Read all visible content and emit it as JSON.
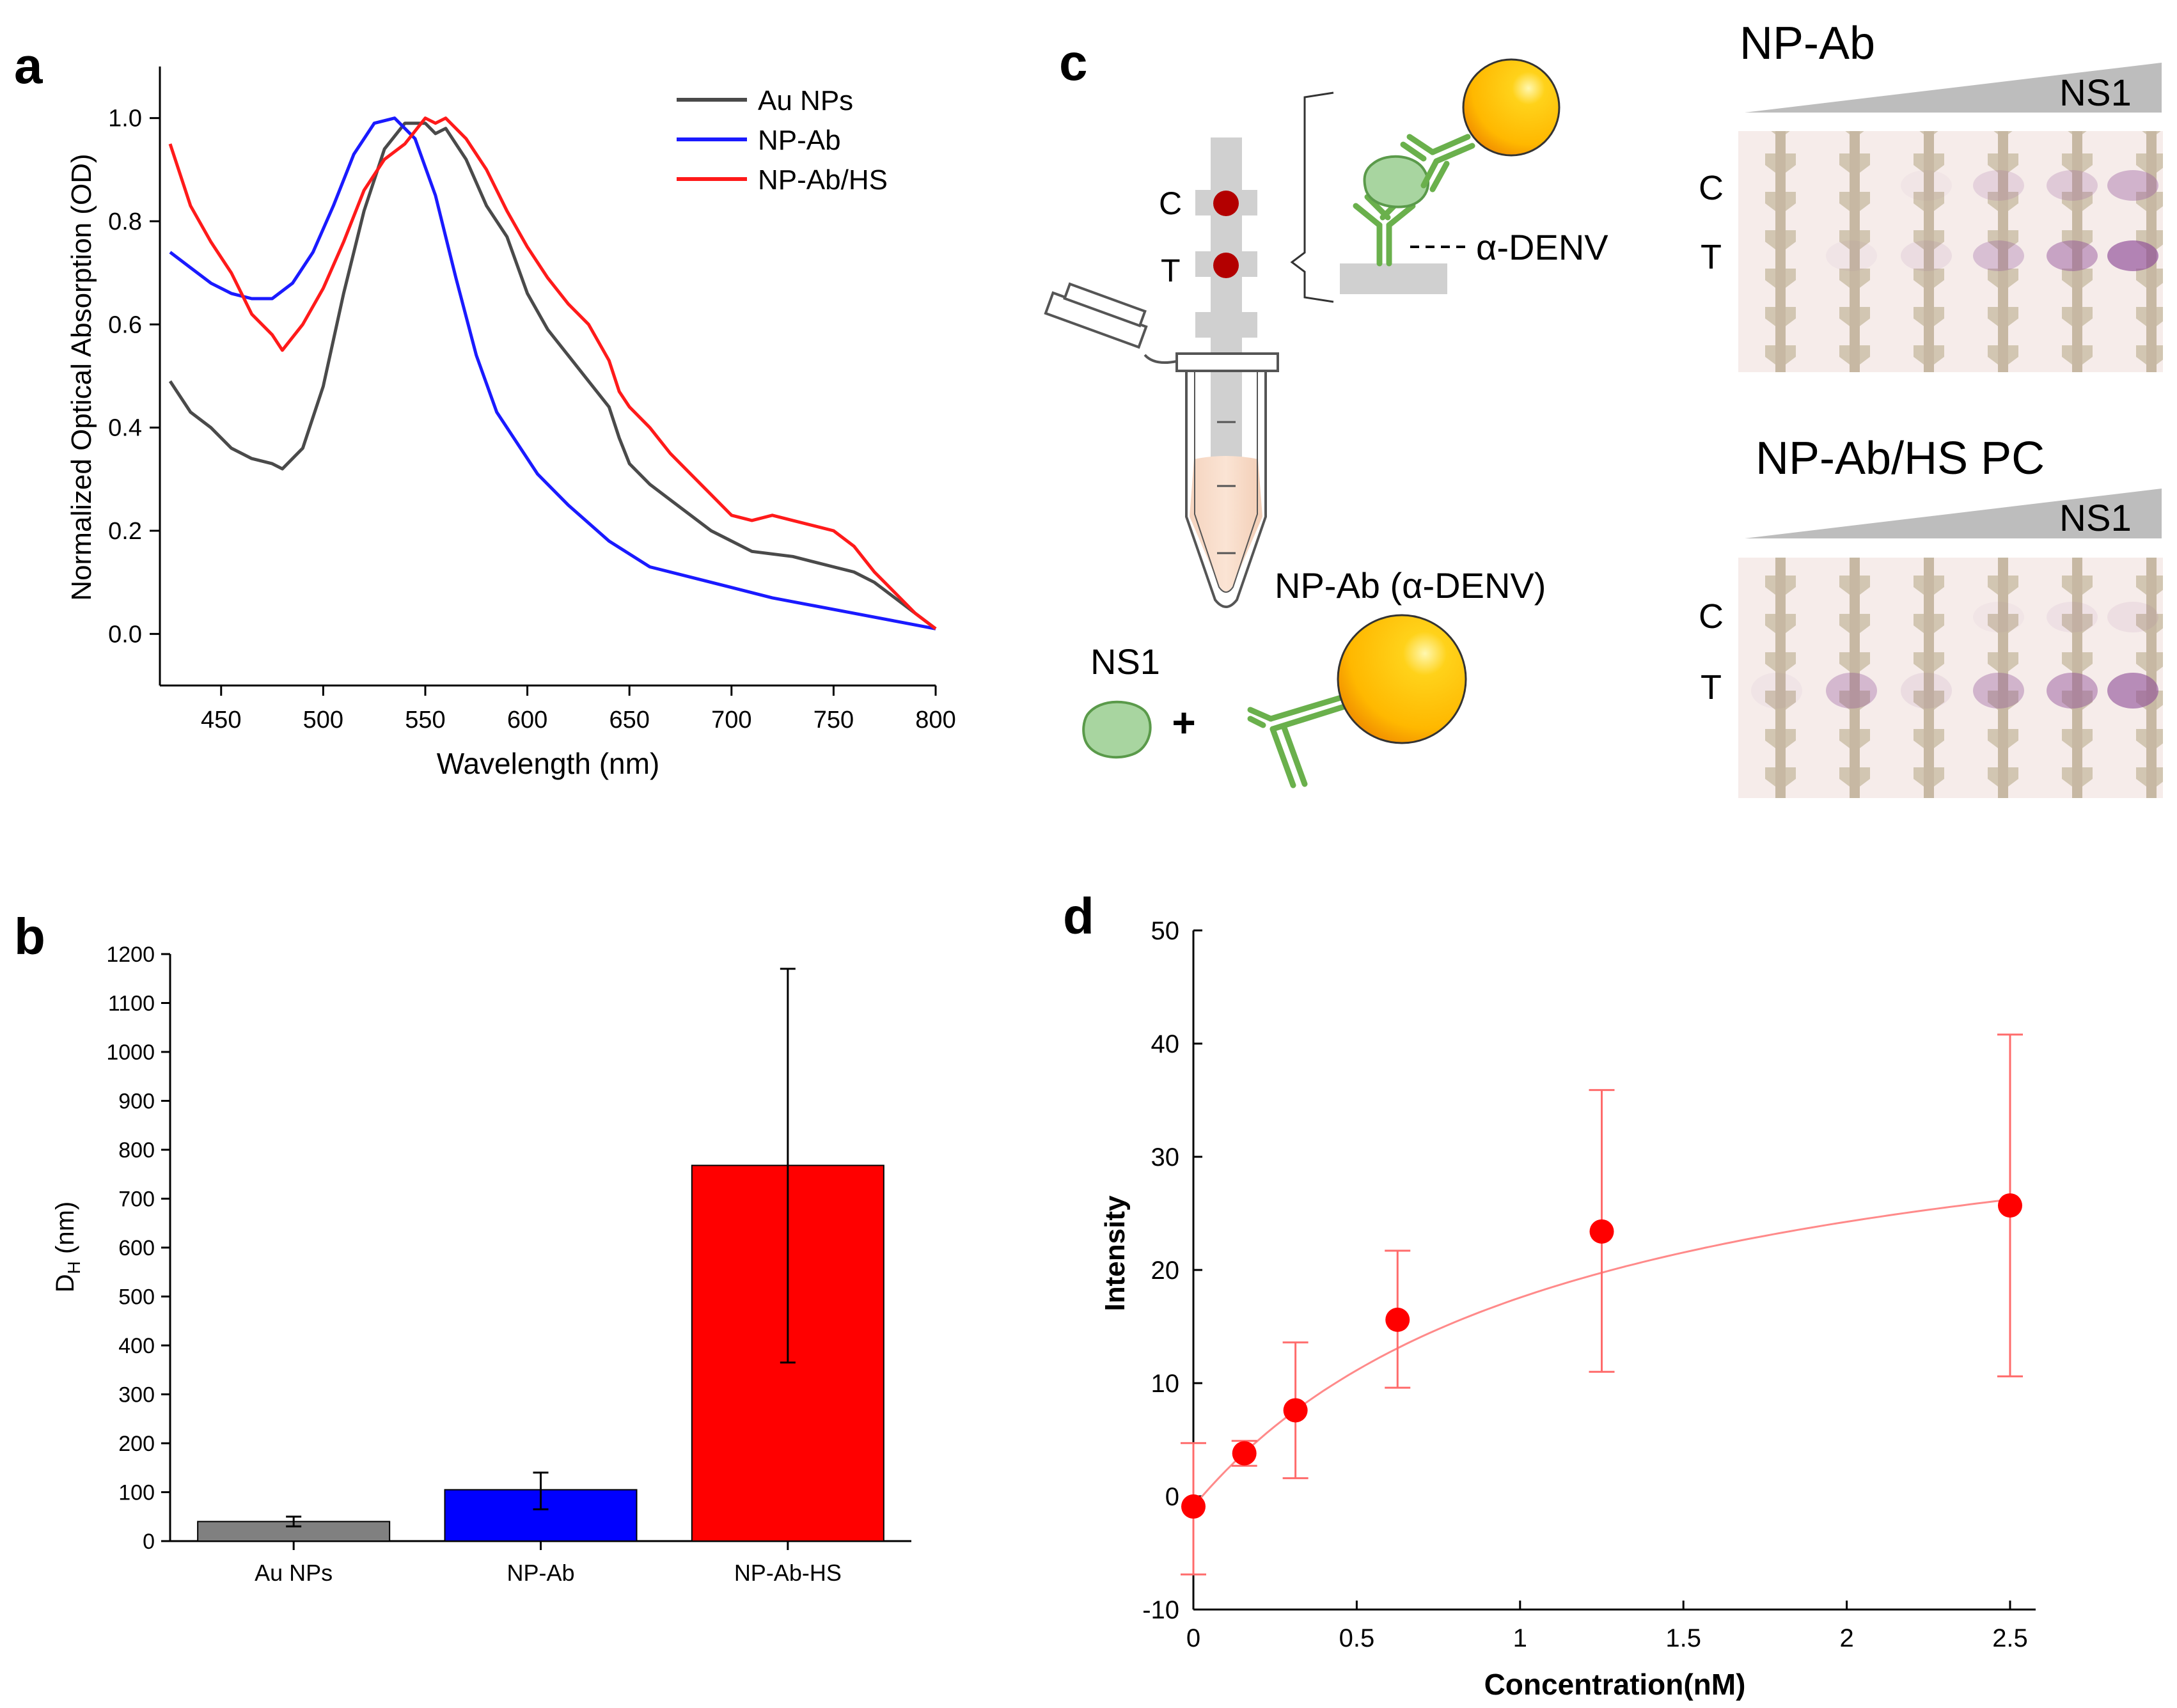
{
  "panels": {
    "a": {
      "label": "a"
    },
    "b": {
      "label": "b"
    },
    "c": {
      "label": "c"
    },
    "d": {
      "label": "d"
    }
  },
  "diagram": {
    "c_label": "C",
    "t_label": "T",
    "antibody_label": "α-DENV",
    "np_ab_caption": "NP-Ab (α-DENV)",
    "ns1_label": "NS1",
    "plus": "+"
  },
  "strips": {
    "top_title": "NP-Ab",
    "bottom_title": "NP-Ab/HS PC",
    "gradient_label": "NS1",
    "c_label": "C",
    "t_label": "T"
  },
  "chart_data": [
    {
      "panel": "a",
      "type": "line",
      "title": "",
      "xlabel": "Wavelength (nm)",
      "ylabel": "Normalized Optical Absorption (OD)",
      "xlim": [
        420,
        800
      ],
      "ylim": [
        -0.1,
        1.1
      ],
      "xticks": [
        450,
        500,
        550,
        600,
        650,
        700,
        750,
        800
      ],
      "yticks": [
        0.0,
        0.2,
        0.4,
        0.6,
        0.8,
        1.0
      ],
      "xtick_labels": [
        "450",
        "500",
        "550",
        "600",
        "650",
        "700",
        "750",
        "800"
      ],
      "ytick_labels": [
        "0.0",
        "0.2",
        "0.4",
        "0.6",
        "0.8",
        "1.0"
      ],
      "legend": "top-right",
      "series": [
        {
          "name": "Au NPs",
          "color": "#4a4a4a",
          "x": [
            425,
            435,
            445,
            455,
            465,
            475,
            480,
            490,
            500,
            510,
            520,
            530,
            540,
            550,
            555,
            560,
            570,
            580,
            590,
            600,
            610,
            620,
            630,
            640,
            645,
            650,
            660,
            670,
            680,
            690,
            700,
            710,
            720,
            730,
            740,
            750,
            760,
            770,
            780,
            790,
            800
          ],
          "y": [
            0.49,
            0.43,
            0.4,
            0.36,
            0.34,
            0.33,
            0.32,
            0.36,
            0.48,
            0.66,
            0.82,
            0.94,
            0.99,
            0.99,
            0.97,
            0.98,
            0.92,
            0.83,
            0.77,
            0.66,
            0.59,
            0.54,
            0.49,
            0.44,
            0.38,
            0.33,
            0.29,
            0.26,
            0.23,
            0.2,
            0.18,
            0.16,
            0.155,
            0.15,
            0.14,
            0.13,
            0.12,
            0.1,
            0.07,
            0.04,
            0.01
          ]
        },
        {
          "name": "NP-Ab",
          "color": "#1a1aff",
          "x": [
            425,
            435,
            445,
            455,
            465,
            475,
            485,
            495,
            505,
            515,
            525,
            535,
            545,
            555,
            565,
            575,
            585,
            595,
            605,
            620,
            640,
            660,
            680,
            700,
            720,
            740,
            760,
            780,
            800
          ],
          "y": [
            0.74,
            0.71,
            0.68,
            0.66,
            0.65,
            0.65,
            0.68,
            0.74,
            0.83,
            0.93,
            0.99,
            1.0,
            0.96,
            0.85,
            0.69,
            0.54,
            0.43,
            0.37,
            0.31,
            0.25,
            0.18,
            0.13,
            0.11,
            0.09,
            0.07,
            0.055,
            0.04,
            0.025,
            0.01
          ]
        },
        {
          "name": "NP-Ab/HS",
          "color": "#ff1a1a",
          "x": [
            425,
            435,
            445,
            455,
            465,
            475,
            480,
            490,
            500,
            510,
            520,
            530,
            540,
            550,
            555,
            560,
            570,
            580,
            590,
            600,
            610,
            620,
            630,
            640,
            645,
            650,
            660,
            670,
            680,
            690,
            700,
            710,
            720,
            730,
            740,
            750,
            760,
            770,
            780,
            790,
            800
          ],
          "y": [
            0.95,
            0.83,
            0.76,
            0.7,
            0.62,
            0.58,
            0.55,
            0.6,
            0.67,
            0.76,
            0.86,
            0.92,
            0.95,
            1.0,
            0.99,
            1.0,
            0.96,
            0.9,
            0.82,
            0.75,
            0.69,
            0.64,
            0.6,
            0.53,
            0.47,
            0.44,
            0.4,
            0.35,
            0.31,
            0.27,
            0.23,
            0.22,
            0.23,
            0.22,
            0.21,
            0.2,
            0.17,
            0.12,
            0.08,
            0.04,
            0.01
          ]
        }
      ]
    },
    {
      "panel": "b",
      "type": "bar",
      "title": "",
      "xlabel": "",
      "ylabel": "D",
      "ylabel_sub": "H",
      "ylabel_unit": " (nm)",
      "ylim": [
        0,
        1200
      ],
      "yticks": [
        0,
        100,
        200,
        300,
        400,
        500,
        600,
        700,
        800,
        900,
        1000,
        1100,
        1200
      ],
      "ytick_labels": [
        "0",
        "100",
        "200",
        "300",
        "400",
        "500",
        "600",
        "700",
        "800",
        "900",
        "1000",
        "1100",
        "1200"
      ],
      "categories": [
        "Au NPs",
        "NP-Ab",
        "NP-Ab-HS"
      ],
      "values": [
        40,
        105,
        768
      ],
      "errors_low": [
        30,
        65,
        365
      ],
      "errors_high": [
        50,
        140,
        1170
      ],
      "colors": [
        "#808080",
        "#0000ff",
        "#ff0000"
      ]
    },
    {
      "panel": "d",
      "type": "scatter",
      "title": "",
      "xlabel": "Concentration(nM)",
      "ylabel": "Intensity",
      "xlim": [
        0,
        2.5
      ],
      "ylim": [
        -10,
        50
      ],
      "xticks": [
        0,
        0.5,
        1,
        1.5,
        2,
        2.5
      ],
      "yticks": [
        -10,
        0,
        10,
        20,
        30,
        40,
        50
      ],
      "xtick_labels": [
        "0",
        "0.5",
        "1",
        "1.5",
        "2",
        "2.5"
      ],
      "ytick_labels": [
        "-10",
        "0",
        "10",
        "20",
        "30",
        "40",
        "50"
      ],
      "x": [
        0,
        0.156,
        0.3125,
        0.625,
        1.25,
        2.5
      ],
      "y": [
        -0.9,
        3.8,
        7.6,
        15.6,
        23.4,
        25.7
      ],
      "err_low": [
        -6.9,
        2.7,
        1.6,
        9.6,
        11.0,
        10.6
      ],
      "err_high": [
        4.7,
        4.9,
        13.6,
        21.7,
        35.9,
        40.8
      ],
      "fit": {
        "model": "Bmax*x/(Kd+x)",
        "Bmax": 39.5,
        "Kd": 1.14,
        "offset": -0.9
      },
      "color": "#ff0000"
    }
  ]
}
